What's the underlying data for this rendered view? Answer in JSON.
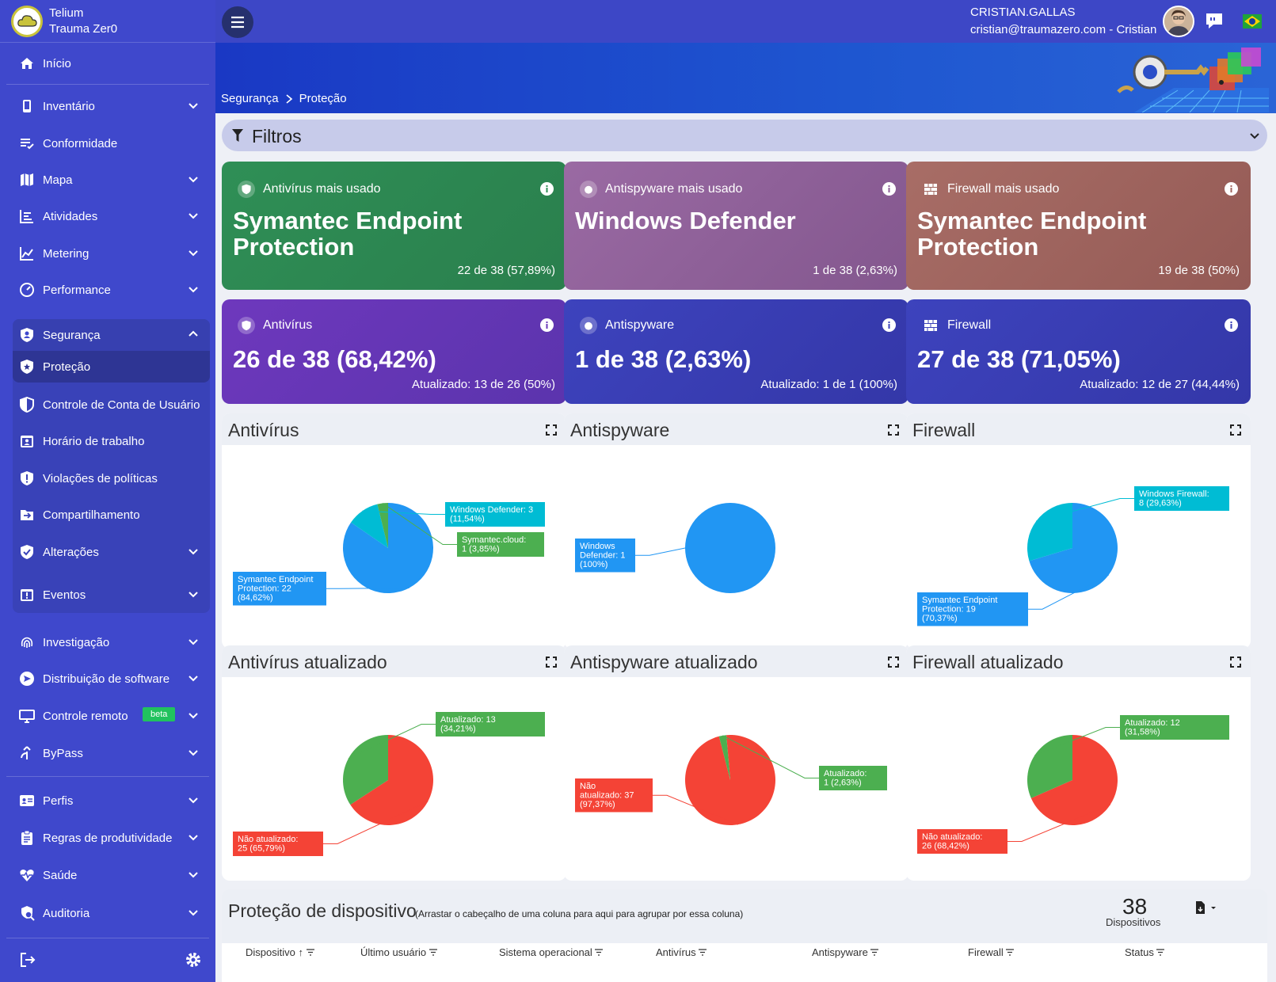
{
  "app": {
    "line1": "Telium",
    "line2": "Trauma Zer0"
  },
  "user": {
    "name": "CRISTIAN.GALLAS",
    "email_line": "cristian@traumazero.com - Cristian"
  },
  "breadcrumb": [
    "Segurança",
    "Proteção"
  ],
  "sidebar": {
    "items": [
      {
        "label": "Início",
        "icon": "home-icon"
      },
      {
        "label": "Inventário",
        "icon": "device-icon"
      },
      {
        "label": "Conformidade",
        "icon": "checklist-icon"
      },
      {
        "label": "Mapa",
        "icon": "map-icon"
      },
      {
        "label": "Atividades",
        "icon": "activity-icon"
      },
      {
        "label": "Metering",
        "icon": "chart-line-icon"
      },
      {
        "label": "Performance",
        "icon": "gauge-icon"
      },
      {
        "label": "Segurança",
        "icon": "shield-user-icon"
      },
      {
        "label": "Proteção",
        "icon": "shield-star-icon"
      },
      {
        "label": "Controle de Conta de Usuário",
        "icon": "shield-half-icon"
      },
      {
        "label": "Horário de trabalho",
        "icon": "calendar-user-icon"
      },
      {
        "label": "Violações de políticas",
        "icon": "shield-alert-icon"
      },
      {
        "label": "Compartilhamento",
        "icon": "folder-share-icon"
      },
      {
        "label": "Alterações",
        "icon": "shield-check-icon"
      },
      {
        "label": "Eventos",
        "icon": "calendar-alert-icon"
      },
      {
        "label": "Investigação",
        "icon": "fingerprint-icon"
      },
      {
        "label": "Distribuição de software",
        "icon": "send-icon"
      },
      {
        "label": "Controle remoto",
        "icon": "monitor-icon"
      },
      {
        "label": "ByPass",
        "icon": "bypass-icon"
      },
      {
        "label": "Perfis",
        "icon": "profile-card-icon"
      },
      {
        "label": "Regras de produtividade",
        "icon": "clipboard-icon"
      },
      {
        "label": "Saúde",
        "icon": "heart-pulse-icon"
      },
      {
        "label": "Auditoria",
        "icon": "audit-icon"
      }
    ],
    "beta_label": "beta"
  },
  "filters": {
    "label": "Filtros"
  },
  "top_cards": [
    {
      "title": "Antivírus mais usado",
      "value": "Symantec Endpoint Protection",
      "footer": "22 de 38 (57,89%)",
      "color": "#2e8b57"
    },
    {
      "title": "Antispyware mais usado",
      "value": "Windows Defender",
      "footer": "1 de 38 (2,63%)",
      "color": "#8e5e99"
    },
    {
      "title": "Firewall mais usado",
      "value": "Symantec Endpoint Protection",
      "footer": "19 de 38 (50%)",
      "color": "#a0645e"
    }
  ],
  "stat_cards": [
    {
      "title": "Antivírus",
      "value": "26 de 38 (68,42%)",
      "footer": "Atualizado: 13 de 26 (50%)",
      "color": "#6a3ab8"
    },
    {
      "title": "Antispyware",
      "value": "1 de 38 (2,63%)",
      "footer": "Atualizado: 1 de 1 (100%)",
      "color": "#3a40b8"
    },
    {
      "title": "Firewall",
      "value": "27 de 38 (71,05%)",
      "footer": "Atualizado: 12 de 27 (44,44%)",
      "color": "#3a40b8"
    }
  ],
  "chart_data": [
    {
      "type": "pie",
      "title": "Antivírus",
      "slices": [
        {
          "label": "Symantec Endpoint Protection: 22 (84,62%)",
          "value": 22,
          "color": "#2196f3"
        },
        {
          "label": "Windows Defender: 3 (11,54%)",
          "value": 3,
          "color": "#00bcd4"
        },
        {
          "label": "Symantec.cloud: 1 (3,85%)",
          "value": 1,
          "color": "#4caf50"
        }
      ]
    },
    {
      "type": "pie",
      "title": "Antispyware",
      "slices": [
        {
          "label": "Windows Defender: 1 (100%)",
          "value": 1,
          "color": "#2196f3"
        }
      ]
    },
    {
      "type": "pie",
      "title": "Firewall",
      "slices": [
        {
          "label": "Symantec Endpoint Protection: 19 (70,37%)",
          "value": 19,
          "color": "#2196f3"
        },
        {
          "label": "Windows Firewall: 8 (29,63%)",
          "value": 8,
          "color": "#00bcd4"
        }
      ]
    },
    {
      "type": "pie",
      "title": "Antivírus atualizado",
      "slices": [
        {
          "label": "Não atualizado: 25 (65,79%)",
          "value": 25,
          "color": "#f44336"
        },
        {
          "label": "Atualizado: 13 (34,21%)",
          "value": 13,
          "color": "#4caf50"
        }
      ]
    },
    {
      "type": "pie",
      "title": "Antispyware atualizado",
      "slices": [
        {
          "label": "Não atualizado: 37 (97,37%)",
          "value": 37,
          "color": "#f44336"
        },
        {
          "label": "Atualizado: 1 (2,63%)",
          "value": 1,
          "color": "#4caf50"
        }
      ]
    },
    {
      "type": "pie",
      "title": "Firewall atualizado",
      "slices": [
        {
          "label": "Não atualizado: 26 (68,42%)",
          "value": 26,
          "color": "#f44336"
        },
        {
          "label": "Atualizado: 12 (31,58%)",
          "value": 12,
          "color": "#4caf50"
        }
      ]
    }
  ],
  "device_protection": {
    "title": "Proteção de dispositivo",
    "hint": "(Arrastar o cabeçalho de uma coluna para aqui para agrupar por essa coluna)",
    "count": "38",
    "count_label": "Dispositivos",
    "columns": [
      "Dispositivo ↑",
      "Último usuário",
      "Sistema operacional",
      "Antivírus",
      "Antispyware",
      "Firewall",
      "Status"
    ]
  }
}
